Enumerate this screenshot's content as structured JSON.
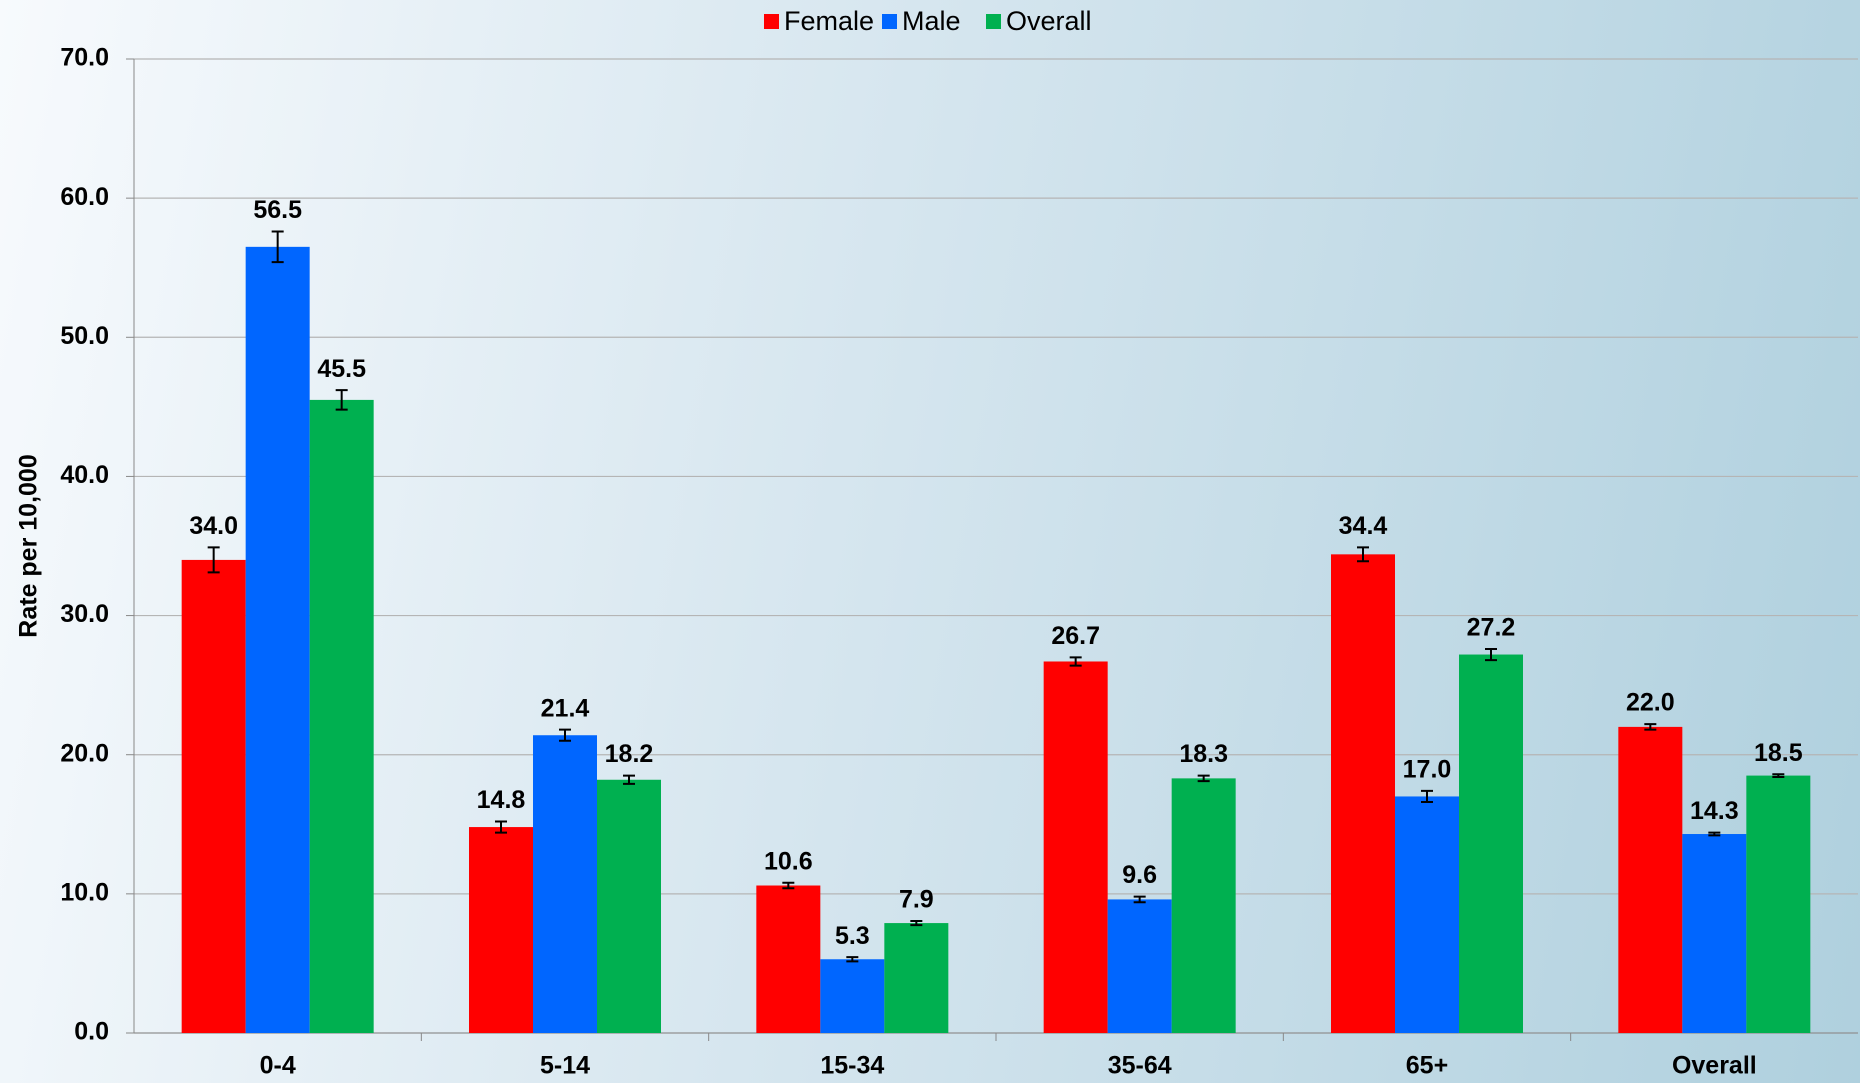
{
  "chart_data": {
    "type": "bar",
    "ylabel": "Rate per 10,000",
    "categories": [
      "0-4",
      "5-14",
      "15-34",
      "35-64",
      "65+",
      "Overall"
    ],
    "series": [
      {
        "name": "Female",
        "color": "#ff0000",
        "values": [
          34.0,
          14.8,
          10.6,
          26.7,
          34.4,
          22.0
        ],
        "value_labels": [
          "34.0",
          "14.8",
          "10.6",
          "26.7",
          "34.4",
          "22.0"
        ],
        "errors": [
          0.9,
          0.4,
          0.2,
          0.3,
          0.5,
          0.2
        ]
      },
      {
        "name": "Male",
        "color": "#0066ff",
        "values": [
          56.5,
          21.4,
          5.3,
          9.6,
          17.0,
          14.3
        ],
        "value_labels": [
          "56.5",
          "21.4",
          "5.3",
          "9.6",
          "17.0",
          "14.3"
        ],
        "errors": [
          1.1,
          0.4,
          0.15,
          0.2,
          0.4,
          0.1
        ]
      },
      {
        "name": "Overall",
        "color": "#00b050",
        "values": [
          45.5,
          18.2,
          7.9,
          18.3,
          27.2,
          18.5
        ],
        "value_labels": [
          "45.5",
          "18.2",
          "7.9",
          "18.3",
          "27.2",
          "18.5"
        ],
        "errors": [
          0.7,
          0.3,
          0.15,
          0.2,
          0.4,
          0.1
        ]
      }
    ],
    "ylim": [
      0,
      70
    ],
    "yticks": [
      {
        "value": 0,
        "label": "0.0"
      },
      {
        "value": 10,
        "label": "10.0"
      },
      {
        "value": 20,
        "label": "20.0"
      },
      {
        "value": 30,
        "label": "30.0"
      },
      {
        "value": 40,
        "label": "40.0"
      },
      {
        "value": 50,
        "label": "50.0"
      },
      {
        "value": 60,
        "label": "60.0"
      },
      {
        "value": 70,
        "label": "70.0"
      }
    ],
    "grid": true,
    "legend": "top"
  }
}
